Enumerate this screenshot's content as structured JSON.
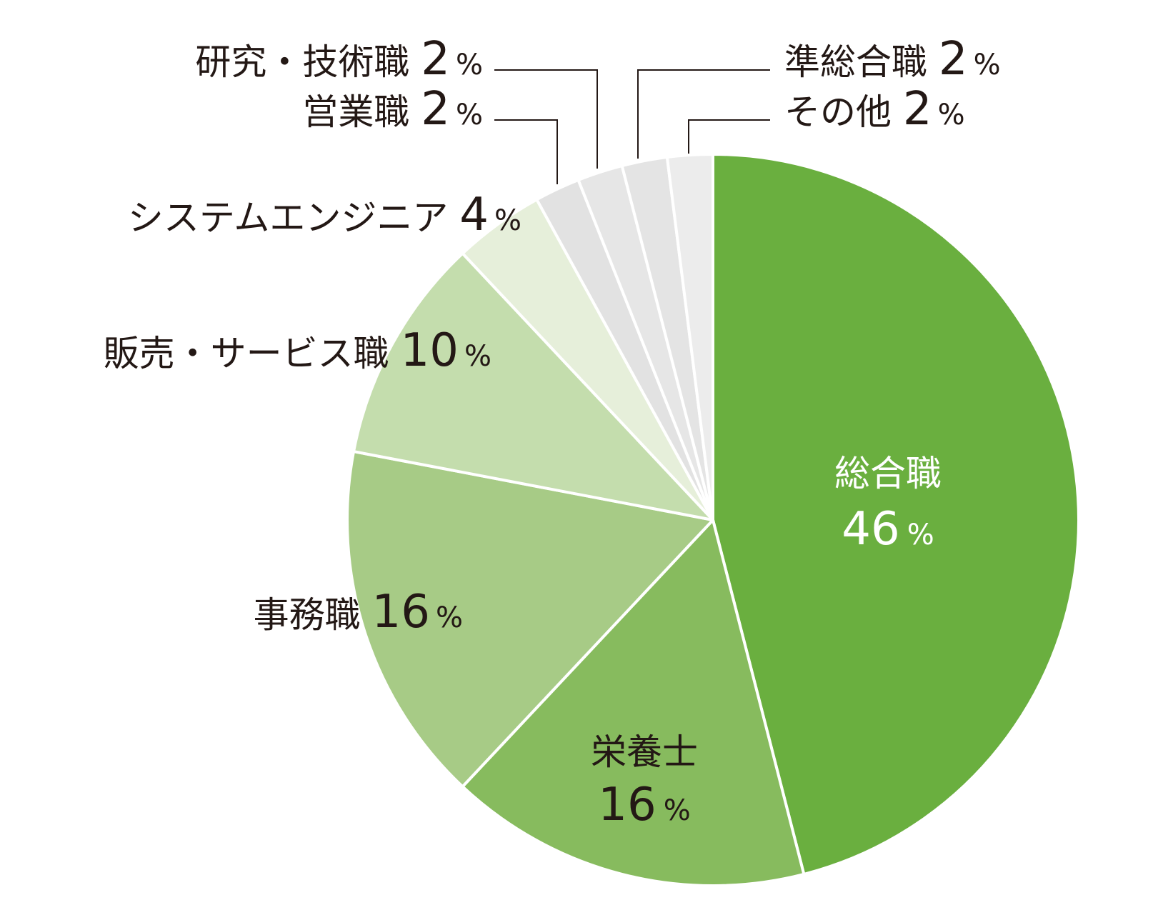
{
  "chart_data": {
    "type": "pie",
    "start": "12 o'clock",
    "direction": "clockwise",
    "percent_symbol": "%",
    "slices": [
      {
        "label": "総合職",
        "value": 46,
        "color": "#6aaf3f",
        "label_position": "inside",
        "label_color": "#ffffff"
      },
      {
        "label": "栄養士",
        "value": 16,
        "color": "#87bb5e",
        "label_position": "inside",
        "label_color": "#231815"
      },
      {
        "label": "事務職",
        "value": 16,
        "color": "#a7cb86",
        "label_position": "outside",
        "label_color": "#231815"
      },
      {
        "label": "販売・サービス職",
        "value": 10,
        "color": "#c4ddad",
        "label_position": "outside",
        "label_color": "#231815"
      },
      {
        "label": "システムエンジニア",
        "value": 4,
        "color": "#e6efda",
        "label_position": "outside",
        "label_color": "#231815"
      },
      {
        "label": "営業職",
        "value": 2,
        "color": "#e2e2e2",
        "label_position": "outside-leader",
        "label_color": "#231815"
      },
      {
        "label": "研究・技術職",
        "value": 2,
        "color": "#e6e6e6",
        "label_position": "outside-leader",
        "label_color": "#231815"
      },
      {
        "label": "準総合職",
        "value": 2,
        "color": "#e4e4e4",
        "label_position": "outside-leader",
        "label_color": "#231815"
      },
      {
        "label": "その他",
        "value": 2,
        "color": "#ececec",
        "label_position": "outside-leader",
        "label_color": "#231815"
      }
    ]
  }
}
